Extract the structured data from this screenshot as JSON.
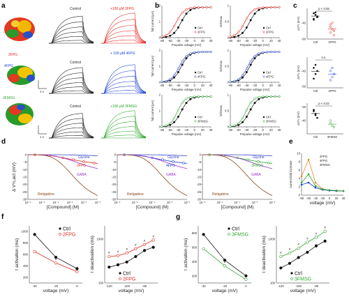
{
  "panel_labels": {
    "a": "a",
    "b": "b",
    "c": "c",
    "d": "d",
    "e": "e",
    "f": "f",
    "g": "g"
  },
  "colors": {
    "ctrl": "#111111",
    "2fpg": "#e2231a",
    "4fpg": "#1b3fd6",
    "3fmsg": "#2aa52a",
    "glycine": "#2f46c8",
    "gaba": "#9b30c8",
    "retigabine": "#8b4513",
    "grey": "#888888"
  },
  "panel_a": {
    "control_label": "Control",
    "drug_labels": [
      "+100 μM 2FPG",
      "+ 100 μM 4FPG",
      "+100 μM 3FMSG"
    ],
    "molecule_labels": [
      "2FPG",
      "4FPG",
      "3FMSG"
    ],
    "scale_time": "1 s",
    "scale_current": "1 μA",
    "mol_colors": [
      "#e03020",
      "#f0b000",
      "#2a9a2a",
      "#2040c0"
    ]
  },
  "panel_b": {
    "ylabels_left": [
      "Tail current (μA)",
      "Tail current (μA)",
      "Tail current (μA)"
    ],
    "ylabels_right": [
      "G/Gmax",
      "G/Gmax",
      "G/Gmax"
    ],
    "xlabel": "Prepulse voltage (mV)",
    "legend_ctrl": "Ctrl",
    "legend_drugs": [
      "2FPG",
      "4FPG",
      "3FMSG"
    ]
  },
  "panel_c": {
    "ylabel": "ΔV½ (mV)",
    "xlabels": [
      [
        "Ctrl",
        "2FPG"
      ],
      [
        "Ctrl",
        "4FPG"
      ],
      [
        "Ctrl",
        "3FMSG"
      ]
    ],
    "sig": [
      "p < 0.05",
      "n.s.",
      "p < 0.02"
    ]
  },
  "panel_d": {
    "ylabel": "Δ V½,act (mV)",
    "xlabel": "[Compound] (M)",
    "names": {
      "glycine": "Glycine",
      "gaba": "GABA",
      "retigabine": "Retigabine"
    },
    "drug_names": [
      "2FPG",
      "4FPG",
      "3FMSG"
    ]
  },
  "panel_e": {
    "ylabel": "current fold increase",
    "xlabel": "voltage (mV)",
    "legend": [
      "2FPG",
      "4FPG",
      "3FMSG"
    ]
  },
  "panel_fg": {
    "act_ylabel": "τ activation (ms)",
    "deact_ylabel": "τ deactivation (ms)",
    "xlabel": "voltage (mV)",
    "hash": "#",
    "legend_f": [
      "Ctrl",
      "2FPG"
    ],
    "legend_g": [
      "Ctrl",
      "3FMSG"
    ]
  },
  "chart_data": [
    {
      "id": "b-gv",
      "type": "line",
      "note": "Conductance-voltage relations (G/Gmax) from tail currents",
      "xlabel": "Prepulse voltage (mV)",
      "ylabel": "G/Gmax",
      "xlim": [
        -80,
        40
      ],
      "ylim": [
        0,
        1
      ],
      "ticks_x": [
        -80,
        -60,
        -40,
        -20,
        0,
        20,
        40
      ],
      "ticks_y": [
        0,
        0.5,
        1
      ],
      "series": [
        {
          "name": "Ctrl",
          "v_half": -33,
          "slope": 10
        },
        {
          "name": "2FPG",
          "v_half": -45,
          "slope": 10
        },
        {
          "name": "4FPG",
          "v_half": -38,
          "slope": 10
        },
        {
          "name": "3FMSG",
          "v_half": -42,
          "slope": 9
        }
      ]
    },
    {
      "id": "c",
      "type": "scatter",
      "ylabel": "ΔV½ (mV)",
      "yticks_2fpg": [
        -60,
        -40,
        -20
      ],
      "yticks_4fpg": [
        -30,
        -40,
        -50,
        -60,
        -70
      ],
      "yticks_3fmsg": [
        -20,
        -30,
        -40,
        -50
      ],
      "groups": [
        {
          "name": "Ctrl vs 2FPG",
          "ctrl": [
            -28,
            -30,
            -33,
            -35,
            -27,
            -32,
            -36
          ],
          "drug": [
            -42,
            -48,
            -55,
            -45,
            -40,
            -50,
            -52
          ],
          "p": "p < 0.05"
        },
        {
          "name": "Ctrl vs 4FPG",
          "ctrl": [
            -38,
            -42,
            -40,
            -45,
            -36
          ],
          "drug": [
            -40,
            -44,
            -42,
            -46,
            -38
          ],
          "p": "n.s."
        },
        {
          "name": "Ctrl vs 3FMSG",
          "ctrl": [
            -33,
            -36,
            -38,
            -32,
            -35
          ],
          "drug": [
            -40,
            -44,
            -45,
            -42
          ],
          "p": "p < 0.02"
        }
      ]
    },
    {
      "id": "d",
      "type": "line",
      "xlabel": "[Compound] (M)",
      "ylabel": "Δ V½,act (mV)",
      "ylim": [
        -30,
        0
      ],
      "ticks_y": [
        0,
        -5,
        -10,
        -15,
        -20,
        -25,
        -30
      ],
      "ticks_x_panel1": [
        "10⁻⁶",
        "10⁻⁵",
        "10⁻⁴",
        "10⁻³",
        "10⁻²",
        "10⁻¹"
      ],
      "ticks_x_panel2": [
        "10⁻⁶",
        "10⁻⁵",
        "10⁻⁴",
        "10⁻³",
        "10⁻²"
      ],
      "ticks_x_panel3": [
        "10⁻⁶",
        "10⁻⁵",
        "10⁻⁴",
        "10⁻³",
        "10⁻²"
      ],
      "series_per_panel": [
        "Glycine",
        "2FPG / 4FPG / 3FMSG",
        "GABA",
        "Retigabine"
      ]
    },
    {
      "id": "e",
      "type": "line",
      "xlabel": "voltage (mV)",
      "ylabel": "current fold increase",
      "x": [
        -80,
        -60,
        -40,
        -20,
        0,
        20,
        40
      ],
      "ylim": [
        0,
        10
      ],
      "ticks_y": [
        0,
        2,
        4,
        6,
        8,
        10
      ],
      "series": [
        {
          "name": "2FPG",
          "values": [
            4.5,
            8.5,
            3.0,
            1.5,
            1.2,
            1.1,
            1.0
          ]
        },
        {
          "name": "4FPG",
          "values": [
            2.5,
            3.0,
            1.8,
            1.3,
            1.1,
            1.0,
            1.0
          ]
        },
        {
          "name": "3FMSG",
          "values": [
            3.0,
            5.0,
            2.2,
            1.4,
            1.2,
            1.1,
            1.0
          ]
        }
      ]
    },
    {
      "id": "f-act",
      "type": "line",
      "xlabel": "voltage (mV)",
      "ylabel": "τ activation (ms)",
      "x": [
        -40,
        -20,
        0
      ],
      "xticks": [
        -40,
        -20,
        0
      ],
      "yticks": [
        200,
        400,
        600,
        800,
        1000
      ],
      "series": [
        {
          "name": "Ctrl",
          "values": [
            950,
            550,
            350
          ]
        },
        {
          "name": "2FPG",
          "values": [
            650,
            450,
            300
          ]
        }
      ]
    },
    {
      "id": "f-deact",
      "type": "line",
      "xlabel": "voltage (mV)",
      "ylabel": "τ deactivation (ms)",
      "x": [
        -120,
        -110,
        -100,
        -90,
        -80,
        -70
      ],
      "xticks": [
        -120,
        -100,
        -80
      ],
      "yticks": [
        100,
        1000
      ],
      "log_y": true,
      "series": [
        {
          "name": "Ctrl",
          "values": [
            230,
            260,
            300,
            400,
            550,
            650
          ]
        },
        {
          "name": "2FPG",
          "values": [
            400,
            420,
            480,
            600,
            750,
            950
          ]
        }
      ]
    },
    {
      "id": "g-act",
      "type": "line",
      "xlabel": "voltage (mV)",
      "ylabel": "τ activation (ms)",
      "x": [
        -40,
        -20,
        0
      ],
      "xticks": [
        -40,
        -20,
        0
      ],
      "yticks": [
        200,
        400,
        600,
        800
      ],
      "series": [
        {
          "name": "Ctrl",
          "values": [
            780,
            420,
            200
          ]
        },
        {
          "name": "3FMSG",
          "values": [
            580,
            340,
            150
          ]
        }
      ]
    },
    {
      "id": "g-deact",
      "type": "line",
      "xlabel": "voltage (mV)",
      "ylabel": "τ deactivation (ms)",
      "x": [
        -120,
        -110,
        -100,
        -90,
        -80,
        -70
      ],
      "xticks": [
        -120,
        -100,
        -80
      ],
      "yticks": [
        100,
        1000
      ],
      "log_y": true,
      "series": [
        {
          "name": "Ctrl",
          "values": [
            220,
            280,
            380,
            500,
            700,
            900
          ]
        },
        {
          "name": "3FMSG",
          "values": [
            400,
            480,
            620,
            850,
            1100,
            1500
          ]
        }
      ]
    }
  ]
}
